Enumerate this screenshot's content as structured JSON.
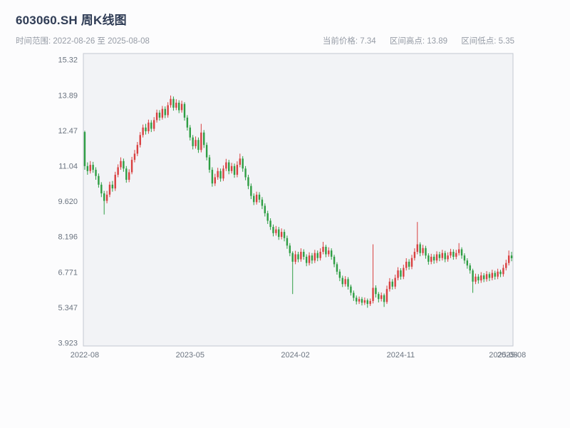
{
  "header": {
    "title": "603060.SH 周K线图",
    "time_range": "时间范围: 2022-08-26 至 2025-08-08",
    "stats": {
      "current": "当前价格: 7.34",
      "high": "区间高点: 13.89",
      "low": "区间低点: 5.35"
    }
  },
  "chart_data": {
    "type": "candlestick",
    "title": "603060.SH 周K线图",
    "xlabel": "",
    "ylabel": "",
    "time_start": "2022-08-26",
    "time_end": "2025-08-08",
    "current_price": 7.34,
    "range_high": 13.89,
    "range_low": 5.35,
    "ylim": [
      3.81,
      15.58
    ],
    "grid": false,
    "y_ticks": [
      {
        "label": "15.32",
        "v": 15.32
      },
      {
        "label": "13.89",
        "v": 13.89
      },
      {
        "label": "12.47",
        "v": 12.47
      },
      {
        "label": "11.04",
        "v": 11.04
      },
      {
        "label": "9.620",
        "v": 9.62
      },
      {
        "label": "8.196",
        "v": 8.196
      },
      {
        "label": "6.771",
        "v": 6.771
      },
      {
        "label": "5.347",
        "v": 5.347
      },
      {
        "label": "3.923",
        "v": 3.923
      }
    ],
    "x_ticks": [
      {
        "label": "2022-08",
        "i": 0
      },
      {
        "label": "2023-05",
        "i": 38
      },
      {
        "label": "2024-02",
        "i": 76
      },
      {
        "label": "2024-11",
        "i": 114
      },
      {
        "label": "2025-08",
        "i": 151
      },
      {
        "label": "2025-08",
        "i": 154
      }
    ],
    "colors": {
      "up": "#d94040",
      "down": "#2f9e44",
      "plot_bg": "#f2f3f6",
      "border": "#c3c8d1",
      "tick_text": "#6b7480"
    },
    "candles_ohlc": [
      [
        12.42,
        12.47,
        10.9,
        11.05
      ],
      [
        11.05,
        11.2,
        10.7,
        10.85
      ],
      [
        10.85,
        11.25,
        10.75,
        11.1
      ],
      [
        11.1,
        11.22,
        10.78,
        10.9
      ],
      [
        10.9,
        11.0,
        10.5,
        10.65
      ],
      [
        10.65,
        10.75,
        10.18,
        10.3
      ],
      [
        10.3,
        10.4,
        9.8,
        9.95
      ],
      [
        9.95,
        10.05,
        9.1,
        9.65
      ],
      [
        9.65,
        10.05,
        9.55,
        9.9
      ],
      [
        9.9,
        10.42,
        9.8,
        10.3
      ],
      [
        10.3,
        10.45,
        10.02,
        10.15
      ],
      [
        10.15,
        10.82,
        10.05,
        10.7
      ],
      [
        10.7,
        11.12,
        10.6,
        11.0
      ],
      [
        11.0,
        11.4,
        10.9,
        11.25
      ],
      [
        11.25,
        11.35,
        10.82,
        10.95
      ],
      [
        10.95,
        11.05,
        10.38,
        10.5
      ],
      [
        10.5,
        10.92,
        10.4,
        10.8
      ],
      [
        10.8,
        11.42,
        10.72,
        11.3
      ],
      [
        11.3,
        11.7,
        11.2,
        11.55
      ],
      [
        11.55,
        12.02,
        11.45,
        11.9
      ],
      [
        11.9,
        12.42,
        11.8,
        12.3
      ],
      [
        12.3,
        12.72,
        12.2,
        12.6
      ],
      [
        12.6,
        12.75,
        12.32,
        12.45
      ],
      [
        12.45,
        12.92,
        12.35,
        12.8
      ],
      [
        12.8,
        12.9,
        12.42,
        12.55
      ],
      [
        12.55,
        13.02,
        12.45,
        12.9
      ],
      [
        12.9,
        13.32,
        12.8,
        13.2
      ],
      [
        13.2,
        13.3,
        12.88,
        13.0
      ],
      [
        13.0,
        13.47,
        12.92,
        13.35
      ],
      [
        13.35,
        13.45,
        12.98,
        13.1
      ],
      [
        13.1,
        13.62,
        13.0,
        13.5
      ],
      [
        13.5,
        13.89,
        13.4,
        13.75
      ],
      [
        13.75,
        13.85,
        13.28,
        13.4
      ],
      [
        13.4,
        13.74,
        13.3,
        13.6
      ],
      [
        13.6,
        13.7,
        13.18,
        13.3
      ],
      [
        13.3,
        13.68,
        13.2,
        13.55
      ],
      [
        13.55,
        13.62,
        12.88,
        13.0
      ],
      [
        13.0,
        13.1,
        12.48,
        12.6
      ],
      [
        12.6,
        12.7,
        12.08,
        12.2
      ],
      [
        12.2,
        12.3,
        11.72,
        11.85
      ],
      [
        11.85,
        12.24,
        11.75,
        12.1
      ],
      [
        12.1,
        12.2,
        11.58,
        11.7
      ],
      [
        11.7,
        12.75,
        11.6,
        12.4
      ],
      [
        12.4,
        12.5,
        11.78,
        11.9
      ],
      [
        11.9,
        12.0,
        11.28,
        11.4
      ],
      [
        11.4,
        11.5,
        10.78,
        10.9
      ],
      [
        10.9,
        11.0,
        10.22,
        10.35
      ],
      [
        10.35,
        10.74,
        10.25,
        10.6
      ],
      [
        10.6,
        10.98,
        10.5,
        10.85
      ],
      [
        10.85,
        10.95,
        10.42,
        10.55
      ],
      [
        10.55,
        11.08,
        10.45,
        10.95
      ],
      [
        10.95,
        11.34,
        10.85,
        11.2
      ],
      [
        11.2,
        11.3,
        10.72,
        10.85
      ],
      [
        10.85,
        11.18,
        10.75,
        11.05
      ],
      [
        11.05,
        11.15,
        10.58,
        10.7
      ],
      [
        10.7,
        11.24,
        10.6,
        11.1
      ],
      [
        11.1,
        11.55,
        11.0,
        11.35
      ],
      [
        11.35,
        11.45,
        10.82,
        10.95
      ],
      [
        10.95,
        11.05,
        10.48,
        10.6
      ],
      [
        10.6,
        10.7,
        10.12,
        10.25
      ],
      [
        10.25,
        10.35,
        9.72,
        9.85
      ],
      [
        9.85,
        9.95,
        9.48,
        9.6
      ],
      [
        9.6,
        10.02,
        9.5,
        9.9
      ],
      [
        9.9,
        10.0,
        9.58,
        9.7
      ],
      [
        9.7,
        9.8,
        9.32,
        9.45
      ],
      [
        9.45,
        9.55,
        9.02,
        9.15
      ],
      [
        9.15,
        9.25,
        8.72,
        8.85
      ],
      [
        8.85,
        8.95,
        8.48,
        8.6
      ],
      [
        8.6,
        8.7,
        8.22,
        8.35
      ],
      [
        8.35,
        8.64,
        8.25,
        8.5
      ],
      [
        8.5,
        8.6,
        8.08,
        8.2
      ],
      [
        8.2,
        8.54,
        8.1,
        8.4
      ],
      [
        8.4,
        8.5,
        8.02,
        8.15
      ],
      [
        8.15,
        8.25,
        7.72,
        7.85
      ],
      [
        7.85,
        7.95,
        7.42,
        7.55
      ],
      [
        7.55,
        7.62,
        5.9,
        7.2
      ],
      [
        7.2,
        7.64,
        7.1,
        7.5
      ],
      [
        7.5,
        7.6,
        7.18,
        7.3
      ],
      [
        7.3,
        7.74,
        7.2,
        7.6
      ],
      [
        7.6,
        7.7,
        7.28,
        7.4
      ],
      [
        7.4,
        7.5,
        7.02,
        7.15
      ],
      [
        7.15,
        7.58,
        7.05,
        7.45
      ],
      [
        7.45,
        7.55,
        7.12,
        7.25
      ],
      [
        7.25,
        7.68,
        7.15,
        7.55
      ],
      [
        7.55,
        7.65,
        7.22,
        7.35
      ],
      [
        7.35,
        7.74,
        7.25,
        7.6
      ],
      [
        7.6,
        8.0,
        7.5,
        7.8
      ],
      [
        7.8,
        7.88,
        7.38,
        7.5
      ],
      [
        7.5,
        7.78,
        7.4,
        7.65
      ],
      [
        7.65,
        7.74,
        7.28,
        7.4
      ],
      [
        7.4,
        7.48,
        6.98,
        7.1
      ],
      [
        7.1,
        7.18,
        6.68,
        6.8
      ],
      [
        6.8,
        6.9,
        6.42,
        6.55
      ],
      [
        6.55,
        6.64,
        6.18,
        6.3
      ],
      [
        6.3,
        6.62,
        6.2,
        6.5
      ],
      [
        6.5,
        6.58,
        6.08,
        6.2
      ],
      [
        6.2,
        6.28,
        5.84,
        5.95
      ],
      [
        5.95,
        6.04,
        5.62,
        5.75
      ],
      [
        5.75,
        5.84,
        5.48,
        5.6
      ],
      [
        5.6,
        5.8,
        5.5,
        5.7
      ],
      [
        5.7,
        5.78,
        5.44,
        5.55
      ],
      [
        5.55,
        5.76,
        5.46,
        5.65
      ],
      [
        5.65,
        5.72,
        5.35,
        5.5
      ],
      [
        5.5,
        5.72,
        5.42,
        5.62
      ],
      [
        5.62,
        7.9,
        5.52,
        6.15
      ],
      [
        6.15,
        6.25,
        5.76,
        5.9
      ],
      [
        5.9,
        5.98,
        5.56,
        5.7
      ],
      [
        5.7,
        5.96,
        5.6,
        5.85
      ],
      [
        5.85,
        5.92,
        5.38,
        5.58
      ],
      [
        5.58,
        6.24,
        5.5,
        6.1
      ],
      [
        6.1,
        6.54,
        6.0,
        6.4
      ],
      [
        6.4,
        6.5,
        6.08,
        6.2
      ],
      [
        6.2,
        6.68,
        6.1,
        6.55
      ],
      [
        6.55,
        6.98,
        6.45,
        6.85
      ],
      [
        6.85,
        6.94,
        6.48,
        6.6
      ],
      [
        6.6,
        7.08,
        6.5,
        6.95
      ],
      [
        6.95,
        7.34,
        6.85,
        7.2
      ],
      [
        7.2,
        7.3,
        6.88,
        7.0
      ],
      [
        7.0,
        7.48,
        6.9,
        7.35
      ],
      [
        7.35,
        7.74,
        7.25,
        7.6
      ],
      [
        7.6,
        8.8,
        7.5,
        7.9
      ],
      [
        7.9,
        7.98,
        7.42,
        7.55
      ],
      [
        7.55,
        7.88,
        7.45,
        7.75
      ],
      [
        7.75,
        7.84,
        7.32,
        7.45
      ],
      [
        7.45,
        7.54,
        7.08,
        7.2
      ],
      [
        7.2,
        7.52,
        7.1,
        7.4
      ],
      [
        7.4,
        7.5,
        7.12,
        7.25
      ],
      [
        7.25,
        7.62,
        7.15,
        7.5
      ],
      [
        7.5,
        7.6,
        7.22,
        7.35
      ],
      [
        7.35,
        7.68,
        7.25,
        7.55
      ],
      [
        7.55,
        7.64,
        7.18,
        7.3
      ],
      [
        7.3,
        7.58,
        7.2,
        7.45
      ],
      [
        7.45,
        7.72,
        7.35,
        7.6
      ],
      [
        7.6,
        7.7,
        7.28,
        7.4
      ],
      [
        7.4,
        7.68,
        7.3,
        7.55
      ],
      [
        7.55,
        7.95,
        7.45,
        7.7
      ],
      [
        7.7,
        7.78,
        7.32,
        7.45
      ],
      [
        7.45,
        7.54,
        7.12,
        7.25
      ],
      [
        7.25,
        7.34,
        6.92,
        7.05
      ],
      [
        7.05,
        7.14,
        6.72,
        6.85
      ],
      [
        6.85,
        6.92,
        5.95,
        6.4
      ],
      [
        6.4,
        6.72,
        6.3,
        6.6
      ],
      [
        6.6,
        6.7,
        6.32,
        6.45
      ],
      [
        6.45,
        6.78,
        6.35,
        6.65
      ],
      [
        6.65,
        6.74,
        6.38,
        6.5
      ],
      [
        6.5,
        6.82,
        6.4,
        6.7
      ],
      [
        6.7,
        6.78,
        6.42,
        6.55
      ],
      [
        6.55,
        6.88,
        6.45,
        6.75
      ],
      [
        6.75,
        6.84,
        6.48,
        6.6
      ],
      [
        6.6,
        6.92,
        6.5,
        6.8
      ],
      [
        6.8,
        6.88,
        6.58,
        6.7
      ],
      [
        6.7,
        7.08,
        6.6,
        6.95
      ],
      [
        6.95,
        7.28,
        6.85,
        7.15
      ],
      [
        7.15,
        7.65,
        7.05,
        7.45
      ],
      [
        7.45,
        7.6,
        7.22,
        7.34
      ]
    ]
  }
}
